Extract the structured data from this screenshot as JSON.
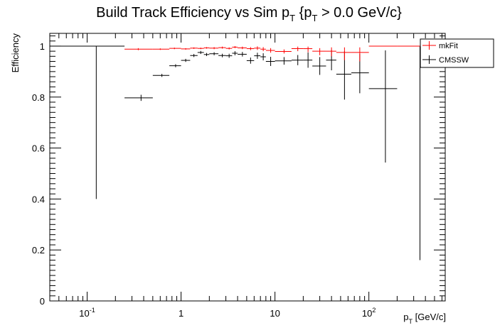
{
  "chart_data": {
    "type": "scatter",
    "title": {
      "main": "Build Track Efficiency vs Sim p",
      "sub1": "T",
      "mid": " {p",
      "sub2": "T",
      "end": " > 0.0 GeV/c}"
    },
    "xlabel": {
      "main": "p",
      "sub": "T",
      "unit": " [GeV/c]"
    },
    "ylabel": "Efficiency",
    "xscale": "log",
    "xlim": [
      0.04,
      650
    ],
    "ylim": [
      0,
      1.05
    ],
    "x_ticks": [
      {
        "value": 0.1,
        "base": "10",
        "exp": "-1"
      },
      {
        "value": 1,
        "base": "1",
        "exp": ""
      },
      {
        "value": 10,
        "base": "10",
        "exp": ""
      },
      {
        "value": 100,
        "base": "10",
        "exp": "2"
      }
    ],
    "y_ticks": [
      {
        "value": 0,
        "label": "0"
      },
      {
        "value": 0.2,
        "label": "0.2"
      },
      {
        "value": 0.4,
        "label": "0.4"
      },
      {
        "value": 0.6,
        "label": "0.6"
      },
      {
        "value": 0.8,
        "label": "0.8"
      },
      {
        "value": 1,
        "label": "1"
      }
    ],
    "grid": false,
    "legend_position": "top-right",
    "series": [
      {
        "name": "mkFit",
        "color": "#ff0000",
        "points": [
          {
            "x": 0.35,
            "xlo": 0.25,
            "xhi": 0.5,
            "y": 0.988,
            "elo": 0.004,
            "ehi": 0.004
          },
          {
            "x": 0.6,
            "xlo": 0.5,
            "xhi": 0.75,
            "y": 0.988,
            "elo": 0.003,
            "ehi": 0.003
          },
          {
            "x": 0.85,
            "xlo": 0.75,
            "xhi": 1.0,
            "y": 0.991,
            "elo": 0.003,
            "ehi": 0.003
          },
          {
            "x": 1.12,
            "xlo": 1.0,
            "xhi": 1.25,
            "y": 0.989,
            "elo": 0.003,
            "ehi": 0.003
          },
          {
            "x": 1.37,
            "xlo": 1.25,
            "xhi": 1.5,
            "y": 0.992,
            "elo": 0.003,
            "ehi": 0.003
          },
          {
            "x": 1.62,
            "xlo": 1.5,
            "xhi": 1.75,
            "y": 0.991,
            "elo": 0.003,
            "ehi": 0.003
          },
          {
            "x": 1.87,
            "xlo": 1.75,
            "xhi": 2.0,
            "y": 0.993,
            "elo": 0.003,
            "ehi": 0.003
          },
          {
            "x": 2.25,
            "xlo": 2.0,
            "xhi": 2.5,
            "y": 0.992,
            "elo": 0.004,
            "ehi": 0.004
          },
          {
            "x": 2.75,
            "xlo": 2.5,
            "xhi": 3.0,
            "y": 0.994,
            "elo": 0.004,
            "ehi": 0.004
          },
          {
            "x": 3.25,
            "xlo": 3.0,
            "xhi": 3.5,
            "y": 0.991,
            "elo": 0.004,
            "ehi": 0.004
          },
          {
            "x": 3.75,
            "xlo": 3.5,
            "xhi": 4.0,
            "y": 0.996,
            "elo": 0.004,
            "ehi": 0.004
          },
          {
            "x": 4.5,
            "xlo": 4.0,
            "xhi": 5.0,
            "y": 0.993,
            "elo": 0.005,
            "ehi": 0.005
          },
          {
            "x": 5.5,
            "xlo": 5.0,
            "xhi": 6.0,
            "y": 0.99,
            "elo": 0.006,
            "ehi": 0.006
          },
          {
            "x": 6.5,
            "xlo": 6.0,
            "xhi": 7.0,
            "y": 0.992,
            "elo": 0.007,
            "ehi": 0.007
          },
          {
            "x": 7.5,
            "xlo": 7.0,
            "xhi": 8.0,
            "y": 0.988,
            "elo": 0.008,
            "ehi": 0.008
          },
          {
            "x": 9.0,
            "xlo": 8.0,
            "xhi": 10.0,
            "y": 0.983,
            "elo": 0.009,
            "ehi": 0.009
          },
          {
            "x": 12.5,
            "xlo": 10.0,
            "xhi": 15.0,
            "y": 0.979,
            "elo": 0.008,
            "ehi": 0.008
          },
          {
            "x": 17.5,
            "xlo": 15.0,
            "xhi": 20.0,
            "y": 0.99,
            "elo": 0.01,
            "ehi": 0.008
          },
          {
            "x": 22.5,
            "xlo": 20.0,
            "xhi": 25.0,
            "y": 0.99,
            "elo": 0.014,
            "ehi": 0.008
          },
          {
            "x": 30.0,
            "xlo": 25.0,
            "xhi": 35.0,
            "y": 0.98,
            "elo": 0.016,
            "ehi": 0.012
          },
          {
            "x": 40.0,
            "xlo": 35.0,
            "xhi": 45.0,
            "y": 0.98,
            "elo": 0.02,
            "ehi": 0.015
          },
          {
            "x": 55.0,
            "xlo": 45.0,
            "xhi": 65.0,
            "y": 0.975,
            "elo": 0.03,
            "ehi": 0.02
          },
          {
            "x": 80.0,
            "xlo": 65.0,
            "xhi": 100.0,
            "y": 0.975,
            "elo": 0.035,
            "ehi": 0.02
          },
          {
            "x": 150.0,
            "xlo": 100.0,
            "xhi": 200.0,
            "y": 1.0,
            "elo": 0.0,
            "ehi": 0.0
          },
          {
            "x": 350.0,
            "xlo": 200.0,
            "xhi": 500.0,
            "y": 1.0,
            "elo": 0.0,
            "ehi": 0.0
          }
        ]
      },
      {
        "name": "CMSSW",
        "color": "#000000",
        "points": [
          {
            "x": 0.125,
            "xlo": 0.04,
            "xhi": 0.25,
            "y": 1.0,
            "elo": 0.6,
            "ehi": 0.0
          },
          {
            "x": 0.375,
            "xlo": 0.25,
            "xhi": 0.5,
            "y": 0.797,
            "elo": 0.012,
            "ehi": 0.012
          },
          {
            "x": 0.625,
            "xlo": 0.5,
            "xhi": 0.75,
            "y": 0.885,
            "elo": 0.006,
            "ehi": 0.006
          },
          {
            "x": 0.875,
            "xlo": 0.75,
            "xhi": 1.0,
            "y": 0.923,
            "elo": 0.006,
            "ehi": 0.006
          },
          {
            "x": 1.12,
            "xlo": 1.0,
            "xhi": 1.25,
            "y": 0.944,
            "elo": 0.006,
            "ehi": 0.006
          },
          {
            "x": 1.37,
            "xlo": 1.25,
            "xhi": 1.5,
            "y": 0.963,
            "elo": 0.006,
            "ehi": 0.006
          },
          {
            "x": 1.62,
            "xlo": 1.5,
            "xhi": 1.75,
            "y": 0.975,
            "elo": 0.006,
            "ehi": 0.006
          },
          {
            "x": 1.87,
            "xlo": 1.75,
            "xhi": 2.0,
            "y": 0.967,
            "elo": 0.006,
            "ehi": 0.006
          },
          {
            "x": 2.25,
            "xlo": 2.0,
            "xhi": 2.5,
            "y": 0.97,
            "elo": 0.006,
            "ehi": 0.006
          },
          {
            "x": 2.75,
            "xlo": 2.5,
            "xhi": 3.0,
            "y": 0.963,
            "elo": 0.007,
            "ehi": 0.007
          },
          {
            "x": 3.25,
            "xlo": 3.0,
            "xhi": 3.5,
            "y": 0.962,
            "elo": 0.008,
            "ehi": 0.008
          },
          {
            "x": 3.75,
            "xlo": 3.5,
            "xhi": 4.0,
            "y": 0.972,
            "elo": 0.008,
            "ehi": 0.008
          },
          {
            "x": 4.5,
            "xlo": 4.0,
            "xhi": 5.0,
            "y": 0.968,
            "elo": 0.009,
            "ehi": 0.009
          },
          {
            "x": 5.5,
            "xlo": 5.0,
            "xhi": 6.0,
            "y": 0.943,
            "elo": 0.012,
            "ehi": 0.012
          },
          {
            "x": 6.5,
            "xlo": 6.0,
            "xhi": 7.0,
            "y": 0.962,
            "elo": 0.012,
            "ehi": 0.012
          },
          {
            "x": 7.5,
            "xlo": 7.0,
            "xhi": 8.0,
            "y": 0.958,
            "elo": 0.014,
            "ehi": 0.014
          },
          {
            "x": 9.0,
            "xlo": 8.0,
            "xhi": 10.0,
            "y": 0.94,
            "elo": 0.018,
            "ehi": 0.018
          },
          {
            "x": 12.5,
            "xlo": 10.0,
            "xhi": 15.0,
            "y": 0.942,
            "elo": 0.015,
            "ehi": 0.015
          },
          {
            "x": 17.5,
            "xlo": 15.0,
            "xhi": 20.0,
            "y": 0.945,
            "elo": 0.02,
            "ehi": 0.02
          },
          {
            "x": 22.5,
            "xlo": 20.0,
            "xhi": 25.0,
            "y": 0.945,
            "elo": 0.03,
            "ehi": 0.03
          },
          {
            "x": 30.0,
            "xlo": 25.0,
            "xhi": 35.0,
            "y": 0.922,
            "elo": 0.035,
            "ehi": 0.035
          },
          {
            "x": 40.0,
            "xlo": 35.0,
            "xhi": 45.0,
            "y": 0.945,
            "elo": 0.04,
            "ehi": 0.04
          },
          {
            "x": 55.0,
            "xlo": 45.0,
            "xhi": 65.0,
            "y": 0.89,
            "elo": 0.1,
            "ehi": 0.09
          },
          {
            "x": 80.0,
            "xlo": 65.0,
            "xhi": 100.0,
            "y": 0.895,
            "elo": 0.08,
            "ehi": 0.075
          },
          {
            "x": 150.0,
            "xlo": 100.0,
            "xhi": 200.0,
            "y": 0.833,
            "elo": 0.29,
            "ehi": 0.15
          },
          {
            "x": 350.0,
            "xlo": 200.0,
            "xhi": 500.0,
            "y": 1.0,
            "elo": 0.84,
            "ehi": 0.0
          }
        ]
      }
    ]
  }
}
